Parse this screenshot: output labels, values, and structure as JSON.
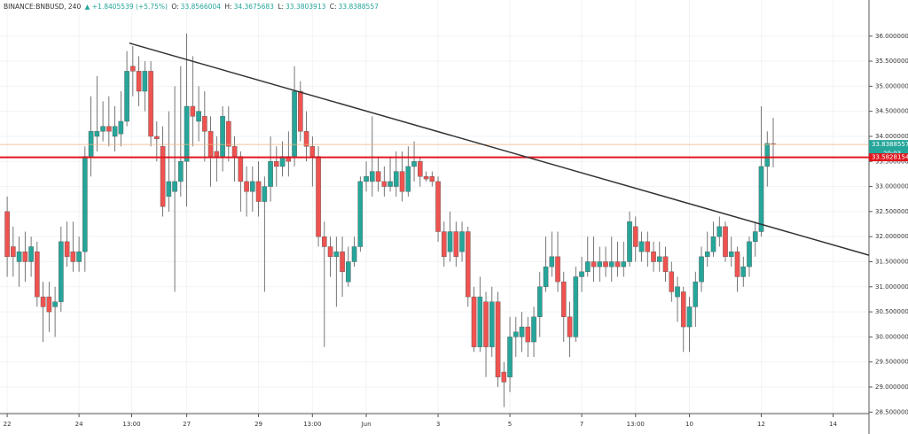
{
  "header": {
    "symbol": "BINANCE:BNBUSD, 240",
    "change": "▲ +1.8405539 (+5.75%)",
    "ohlc_keys": [
      "O:",
      "H:",
      "L:",
      "C:"
    ]
  },
  "chart_data": {
    "type": "candlestick",
    "up_color": "#26a69a",
    "down_color": "#ef5350",
    "open": [
      32.5,
      31.8,
      31.5,
      31.7,
      31.5,
      31.7,
      30.8,
      30.8,
      30.6,
      30.7,
      31.9,
      31.7,
      31.5,
      31.7,
      33.6,
      34.0,
      34.1,
      34.2,
      34.0,
      34.05,
      34.3,
      35.4,
      35.3,
      34.9,
      35.3,
      34.0,
      33.8,
      32.8,
      32.9,
      33.1,
      33.5,
      34.6,
      34.3,
      34.4,
      34.1,
      33.7,
      33.6,
      34.3,
      33.8,
      33.6,
      33.1,
      32.9,
      33.1,
      32.7,
      33.0,
      33.5,
      33.4,
      33.6,
      33.6,
      34.9,
      34.1,
      33.8,
      33.6,
      32.0,
      31.8,
      31.6,
      31.7,
      31.1,
      31.5,
      31.8,
      33.1,
      33.1,
      33.3,
      33.1,
      33.0,
      33.0,
      33.3,
      32.9,
      33.4,
      33.5,
      33.2,
      33.2,
      33.1,
      32.1,
      31.7,
      32.1,
      31.7,
      32.1,
      30.8,
      29.8,
      30.7,
      29.8,
      30.7,
      29.3,
      29.2,
      30.0,
      30.0,
      30.2,
      29.9,
      30.4,
      31.0,
      31.4,
      31.6,
      31.1,
      30.4,
      30.0,
      31.2,
      31.3,
      31.5,
      31.4,
      31.5,
      31.4,
      31.5,
      31.4,
      31.5,
      32.2,
      31.7,
      31.9,
      31.7,
      31.5,
      31.6,
      31.3,
      30.8,
      30.9,
      30.2,
      30.6,
      31.1,
      31.6,
      31.7,
      32.0,
      32.2,
      31.6,
      31.7,
      31.2,
      31.4,
      31.9,
      32.1,
      33.4,
      33.8566004
    ],
    "high": [
      32.8,
      32.2,
      32.0,
      32.1,
      32.0,
      31.9,
      31.1,
      31.1,
      31.0,
      32.2,
      32.3,
      32.3,
      32.0,
      33.8,
      34.8,
      35.2,
      34.7,
      34.8,
      34.6,
      34.9,
      35.7,
      35.8,
      35.6,
      35.5,
      35.5,
      34.3,
      34.2,
      34.5,
      35.0,
      35.4,
      36.05,
      35.6,
      35.0,
      34.9,
      34.4,
      34.0,
      34.6,
      34.6,
      34.0,
      33.7,
      33.4,
      33.4,
      33.5,
      33.2,
      34.0,
      33.8,
      33.9,
      34.1,
      35.4,
      35.1,
      34.5,
      34.0,
      33.8,
      32.3,
      32.0,
      32.0,
      32.0,
      31.8,
      32.0,
      33.2,
      33.5,
      34.4,
      33.6,
      33.4,
      33.6,
      33.7,
      33.7,
      33.8,
      33.9,
      33.6,
      33.3,
      33.3,
      33.2,
      32.3,
      32.5,
      32.3,
      32.3,
      32.2,
      31.0,
      31.2,
      30.9,
      31.0,
      30.9,
      29.5,
      30.4,
      30.4,
      30.5,
      30.4,
      30.6,
      31.3,
      32.0,
      32.1,
      32.1,
      31.3,
      30.7,
      31.4,
      31.6,
      32.0,
      32.0,
      31.8,
      31.8,
      32.0,
      31.9,
      31.9,
      32.5,
      32.4,
      32.1,
      32.1,
      31.9,
      31.9,
      31.8,
      31.5,
      31.2,
      31.0,
      30.8,
      31.3,
      31.8,
      32.1,
      32.3,
      32.4,
      32.3,
      32.0,
      31.8,
      31.6,
      32.0,
      32.3,
      34.6,
      34.1,
      34.3675683
    ],
    "low": [
      31.2,
      31.2,
      31.0,
      31.1,
      31.2,
      30.6,
      29.9,
      30.1,
      30.0,
      30.5,
      31.4,
      31.3,
      31.3,
      31.3,
      33.2,
      33.7,
      33.9,
      33.8,
      33.7,
      33.8,
      34.2,
      34.8,
      34.6,
      34.5,
      33.8,
      33.5,
      32.4,
      32.5,
      30.9,
      32.8,
      32.6,
      33.8,
      33.9,
      33.5,
      33.0,
      33.1,
      33.3,
      33.5,
      33.1,
      32.5,
      32.4,
      32.5,
      32.4,
      30.9,
      32.7,
      33.0,
      33.2,
      33.2,
      33.4,
      33.9,
      33.5,
      33.0,
      31.8,
      29.8,
      31.2,
      30.6,
      30.8,
      31.0,
      31.4,
      31.7,
      32.9,
      32.8,
      32.9,
      32.8,
      32.9,
      32.8,
      32.7,
      32.8,
      33.1,
      33.0,
      33.1,
      33.0,
      31.9,
      31.4,
      31.5,
      31.4,
      31.5,
      30.6,
      29.7,
      29.7,
      29.2,
      29.6,
      29.0,
      28.6,
      28.9,
      29.6,
      29.7,
      29.6,
      29.6,
      30.0,
      30.9,
      31.2,
      30.9,
      29.9,
      29.6,
      29.9,
      30.9,
      31.2,
      31.1,
      31.1,
      31.2,
      31.1,
      31.2,
      31.2,
      31.4,
      31.5,
      31.5,
      31.4,
      31.3,
      31.3,
      31.1,
      30.7,
      30.3,
      29.7,
      29.7,
      30.2,
      30.9,
      31.4,
      31.6,
      31.8,
      31.5,
      31.4,
      30.9,
      31.0,
      31.2,
      31.6,
      32.0,
      33.0,
      33.3803913
    ],
    "close": [
      31.6,
      31.6,
      31.7,
      31.5,
      31.8,
      30.8,
      30.6,
      30.5,
      30.7,
      31.9,
      31.6,
      31.5,
      31.7,
      33.6,
      34.1,
      34.1,
      34.2,
      34.1,
      34.2,
      34.3,
      35.3,
      35.3,
      34.9,
      35.3,
      34.0,
      33.95,
      32.6,
      33.1,
      33.1,
      33.5,
      34.6,
      34.4,
      34.5,
      34.1,
      33.6,
      33.6,
      34.4,
      33.8,
      33.6,
      33.1,
      32.9,
      33.1,
      32.7,
      33.0,
      33.5,
      33.4,
      33.6,
      33.5,
      34.9,
      34.1,
      33.8,
      33.6,
      32.0,
      31.8,
      31.6,
      31.7,
      31.3,
      31.5,
      31.8,
      33.1,
      33.2,
      33.3,
      33.1,
      33.0,
      33.1,
      33.3,
      32.9,
      33.4,
      33.5,
      33.2,
      33.15,
      33.1,
      32.1,
      31.6,
      32.1,
      31.6,
      32.1,
      30.8,
      29.8,
      30.8,
      29.8,
      30.7,
      29.2,
      29.1,
      30.0,
      30.1,
      30.2,
      29.9,
      30.4,
      31.0,
      31.4,
      31.6,
      31.1,
      30.4,
      30.0,
      31.2,
      31.3,
      31.5,
      31.4,
      31.5,
      31.4,
      31.5,
      31.4,
      31.5,
      32.3,
      31.8,
      31.9,
      31.7,
      31.5,
      31.6,
      31.3,
      30.9,
      31.0,
      30.2,
      30.6,
      31.1,
      31.6,
      31.7,
      32.0,
      32.2,
      31.6,
      31.7,
      31.2,
      31.4,
      31.9,
      32.1,
      33.4,
      33.86,
      33.8388557
    ],
    "xlim": [
      -1.2,
      144
    ],
    "ylim": [
      28.47,
      36.72
    ],
    "xticks": [
      {
        "value": 0,
        "label": "22"
      },
      {
        "value": 12,
        "label": "24"
      },
      {
        "value": 20.8,
        "label": "13:00"
      },
      {
        "value": 30,
        "label": "27"
      },
      {
        "value": 42,
        "label": "29"
      },
      {
        "value": 51,
        "label": "13:00"
      },
      {
        "value": 60,
        "label": "Jun"
      },
      {
        "value": 72,
        "label": "3"
      },
      {
        "value": 84,
        "label": "5"
      },
      {
        "value": 96,
        "label": "7"
      },
      {
        "value": 105,
        "label": "13:00"
      },
      {
        "value": 114,
        "label": "10"
      },
      {
        "value": 126,
        "label": "12"
      },
      {
        "value": 138,
        "label": "14"
      }
    ],
    "yticks": [
      {
        "value": 28.5,
        "label": "28.5000000"
      },
      {
        "value": 29,
        "label": "29.0000000"
      },
      {
        "value": 29.5,
        "label": "29.5000000"
      },
      {
        "value": 30,
        "label": "30.0000000"
      },
      {
        "value": 30.5,
        "label": "30.5000000"
      },
      {
        "value": 31,
        "label": "31.0000000"
      },
      {
        "value": 31.5,
        "label": "31.5000000"
      },
      {
        "value": 32,
        "label": "32.0000000"
      },
      {
        "value": 32.5,
        "label": "32.5000000"
      },
      {
        "value": 33,
        "label": "33.0000000"
      },
      {
        "value": 33.5,
        "label": "33.5000000"
      },
      {
        "value": 34,
        "label": "34.0000000"
      },
      {
        "value": 34.5,
        "label": "34.5000000"
      },
      {
        "value": 35,
        "label": "35.0000000"
      },
      {
        "value": 35.5,
        "label": "35.5000000"
      },
      {
        "value": 36,
        "label": "36.0000000"
      }
    ],
    "grid": true,
    "hline": {
      "value": 33.5828154,
      "color": "#e0171f"
    },
    "countdown": "20:03",
    "trendline": {
      "x": [
        20.4,
        144
      ],
      "y": [
        35.86,
        31.63
      ],
      "color": "#333333"
    }
  }
}
